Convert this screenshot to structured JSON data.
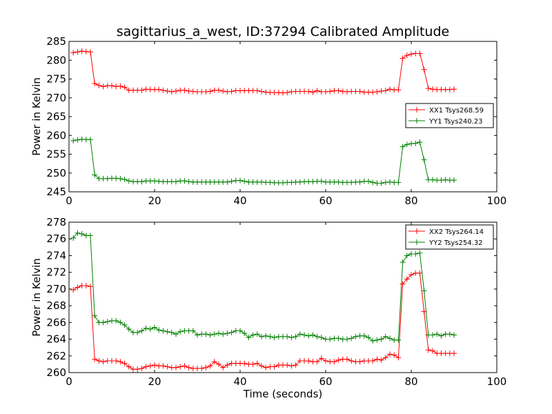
{
  "chart_data": [
    {
      "type": "line",
      "title": "sagittarius_a_west, ID:37294 Calibrated Amplitude",
      "xlabel": "",
      "ylabel": "Power in Kelvin",
      "xlim": [
        0,
        100
      ],
      "ylim": [
        245,
        285
      ],
      "xticks": [
        "0",
        "20",
        "40",
        "60",
        "80",
        "100"
      ],
      "yticks": [
        "245",
        "250",
        "255",
        "260",
        "265",
        "270",
        "275",
        "280",
        "285"
      ],
      "grid": false,
      "legend_position": "center-right",
      "series": [
        {
          "name": "XX1 Tsys268.59",
          "color": "#ff0000",
          "x": [
            1,
            2,
            3,
            4,
            5,
            6,
            7,
            8,
            9,
            10,
            11,
            12,
            13,
            14,
            15,
            16,
            17,
            18,
            19,
            20,
            21,
            22,
            23,
            24,
            25,
            26,
            27,
            28,
            29,
            30,
            31,
            32,
            33,
            34,
            35,
            36,
            37,
            38,
            39,
            40,
            41,
            42,
            43,
            44,
            45,
            46,
            47,
            48,
            49,
            50,
            51,
            52,
            53,
            54,
            55,
            56,
            57,
            58,
            59,
            60,
            61,
            62,
            63,
            64,
            65,
            66,
            67,
            68,
            69,
            70,
            71,
            72,
            73,
            74,
            75,
            76,
            77,
            78,
            79,
            80,
            81,
            82,
            83,
            84,
            85,
            86,
            87,
            88,
            89,
            90
          ],
          "values": [
            282,
            282.2,
            282.4,
            282.3,
            282.2,
            273.8,
            273.3,
            273,
            273.2,
            273.2,
            273,
            273.1,
            272.8,
            272,
            272,
            272,
            272,
            272.3,
            272.2,
            272.2,
            272.2,
            272,
            271.8,
            271.6,
            271.8,
            272,
            272,
            271.8,
            271.7,
            271.6,
            271.6,
            271.6,
            271.7,
            272,
            272,
            271.8,
            271.6,
            271.7,
            271.9,
            271.9,
            271.9,
            271.9,
            271.9,
            271.9,
            271.7,
            271.5,
            271.4,
            271.4,
            271.4,
            271.3,
            271.4,
            271.6,
            271.7,
            271.7,
            271.7,
            271.7,
            271.5,
            271.9,
            271.6,
            271.6,
            271.7,
            271.9,
            271.9,
            271.7,
            271.6,
            271.7,
            271.7,
            271.7,
            271.5,
            271.5,
            271.5,
            271.6,
            271.8,
            271.9,
            272.3,
            272.1,
            272.1,
            280.5,
            281.3,
            281.6,
            281.8,
            281.8,
            277.5,
            272.5,
            272.3,
            272.2,
            272.2,
            272.2,
            272.2,
            272.3
          ]
        },
        {
          "name": "YY1 Tsys240.23",
          "color": "#008000",
          "x": [
            1,
            2,
            3,
            4,
            5,
            6,
            7,
            8,
            9,
            10,
            11,
            12,
            13,
            14,
            15,
            16,
            17,
            18,
            19,
            20,
            21,
            22,
            23,
            24,
            25,
            26,
            27,
            28,
            29,
            30,
            31,
            32,
            33,
            34,
            35,
            36,
            37,
            38,
            39,
            40,
            41,
            42,
            43,
            44,
            45,
            46,
            47,
            48,
            49,
            50,
            51,
            52,
            53,
            54,
            55,
            56,
            57,
            58,
            59,
            60,
            61,
            62,
            63,
            64,
            65,
            66,
            67,
            68,
            69,
            70,
            71,
            72,
            73,
            74,
            75,
            76,
            77,
            78,
            79,
            80,
            81,
            82,
            83,
            84,
            85,
            86,
            87,
            88,
            89,
            90
          ],
          "values": [
            258.6,
            258.8,
            259,
            258.9,
            258.9,
            249.5,
            248.5,
            248.5,
            248.5,
            248.6,
            248.6,
            248.5,
            248.3,
            247.9,
            247.7,
            247.7,
            247.7,
            247.9,
            247.9,
            247.9,
            247.8,
            247.7,
            247.7,
            247.7,
            247.7,
            247.9,
            247.9,
            247.7,
            247.6,
            247.6,
            247.6,
            247.6,
            247.6,
            247.6,
            247.6,
            247.6,
            247.6,
            247.8,
            248,
            248,
            247.8,
            247.6,
            247.6,
            247.6,
            247.6,
            247.5,
            247.5,
            247.4,
            247.4,
            247.4,
            247.5,
            247.5,
            247.6,
            247.6,
            247.7,
            247.7,
            247.7,
            247.8,
            247.8,
            247.6,
            247.6,
            247.6,
            247.6,
            247.5,
            247.5,
            247.5,
            247.6,
            247.6,
            247.8,
            247.8,
            247.5,
            247.3,
            247.3,
            247.5,
            247.6,
            247.5,
            247.5,
            257,
            257.6,
            257.8,
            257.9,
            258.2,
            253.5,
            248.2,
            248.2,
            248.1,
            248.1,
            248.2,
            248.1,
            248.1
          ]
        }
      ]
    },
    {
      "type": "line",
      "title": "",
      "xlabel": "Time (seconds)",
      "ylabel": "Power in Kelvin",
      "xlim": [
        0,
        100
      ],
      "ylim": [
        260,
        278
      ],
      "xticks": [
        "0",
        "20",
        "40",
        "60",
        "80",
        "100"
      ],
      "yticks": [
        "260",
        "262",
        "264",
        "266",
        "268",
        "270",
        "272",
        "274",
        "276",
        "278"
      ],
      "grid": false,
      "legend_position": "top-right",
      "series": [
        {
          "name": "XX2 Tsys264.14",
          "color": "#ff0000",
          "x": [
            1,
            2,
            3,
            4,
            5,
            6,
            7,
            8,
            9,
            10,
            11,
            12,
            13,
            14,
            15,
            16,
            17,
            18,
            19,
            20,
            21,
            22,
            23,
            24,
            25,
            26,
            27,
            28,
            29,
            30,
            31,
            32,
            33,
            34,
            35,
            36,
            37,
            38,
            39,
            40,
            41,
            42,
            43,
            44,
            45,
            46,
            47,
            48,
            49,
            50,
            51,
            52,
            53,
            54,
            55,
            56,
            57,
            58,
            59,
            60,
            61,
            62,
            63,
            64,
            65,
            66,
            67,
            68,
            69,
            70,
            71,
            72,
            73,
            74,
            75,
            76,
            77,
            78,
            79,
            80,
            81,
            82,
            83,
            84,
            85,
            86,
            87,
            88,
            89,
            90
          ],
          "values": [
            269.9,
            270.2,
            270.4,
            270.4,
            270.3,
            261.6,
            261.4,
            261.3,
            261.4,
            261.4,
            261.4,
            261.3,
            261.1,
            260.7,
            260.4,
            260.4,
            260.5,
            260.7,
            260.8,
            260.9,
            260.8,
            260.8,
            260.7,
            260.6,
            260.6,
            260.7,
            260.8,
            260.6,
            260.5,
            260.5,
            260.5,
            260.6,
            260.8,
            261.3,
            261,
            260.6,
            260.9,
            261.1,
            261.1,
            261.1,
            261.1,
            261,
            261,
            261.1,
            260.8,
            260.6,
            260.7,
            260.7,
            260.9,
            260.9,
            260.9,
            260.8,
            260.9,
            261.4,
            261.4,
            261.4,
            261.3,
            261.3,
            261.7,
            261.4,
            261.3,
            261.3,
            261.5,
            261.6,
            261.6,
            261.4,
            261.3,
            261.3,
            261.4,
            261.4,
            261.4,
            261.6,
            261.5,
            261.8,
            262.2,
            262.1,
            261.8,
            270.6,
            271.2,
            271.7,
            271.9,
            271.9,
            267.3,
            262.7,
            262.6,
            262.3,
            262.3,
            262.3,
            262.3,
            262.3
          ]
        },
        {
          "name": "YY2 Tsys254.32",
          "color": "#008000",
          "x": [
            1,
            2,
            3,
            4,
            5,
            6,
            7,
            8,
            9,
            10,
            11,
            12,
            13,
            14,
            15,
            16,
            17,
            18,
            19,
            20,
            21,
            22,
            23,
            24,
            25,
            26,
            27,
            28,
            29,
            30,
            31,
            32,
            33,
            34,
            35,
            36,
            37,
            38,
            39,
            40,
            41,
            42,
            43,
            44,
            45,
            46,
            47,
            48,
            49,
            50,
            51,
            52,
            53,
            54,
            55,
            56,
            57,
            58,
            59,
            60,
            61,
            62,
            63,
            64,
            65,
            66,
            67,
            68,
            69,
            70,
            71,
            72,
            73,
            74,
            75,
            76,
            77,
            78,
            79,
            80,
            81,
            82,
            83,
            84,
            85,
            86,
            87,
            88,
            89,
            90
          ],
          "values": [
            276.1,
            276.7,
            276.6,
            276.4,
            276.4,
            266.8,
            266,
            266,
            266.1,
            266.2,
            266.2,
            266,
            265.7,
            265.2,
            264.8,
            264.8,
            265,
            265.3,
            265.2,
            265.4,
            265.1,
            265,
            264.9,
            264.8,
            264.6,
            264.9,
            265,
            265,
            265,
            264.5,
            264.6,
            264.6,
            264.5,
            264.6,
            264.7,
            264.6,
            264.7,
            264.8,
            265,
            265,
            264.7,
            264.2,
            264.5,
            264.6,
            264.3,
            264.4,
            264.3,
            264.2,
            264.3,
            264.3,
            264.3,
            264.2,
            264.3,
            264.6,
            264.5,
            264.4,
            264.5,
            264.3,
            264.2,
            264,
            264,
            264.1,
            264.1,
            264,
            264,
            264.1,
            264.3,
            264.4,
            264.4,
            264.2,
            263.8,
            263.9,
            264,
            264.3,
            264.1,
            263.9,
            263.9,
            273.2,
            274,
            274.2,
            274.2,
            274.3,
            269.8,
            264.5,
            264.5,
            264.6,
            264.4,
            264.6,
            264.6,
            264.5
          ]
        }
      ]
    }
  ]
}
